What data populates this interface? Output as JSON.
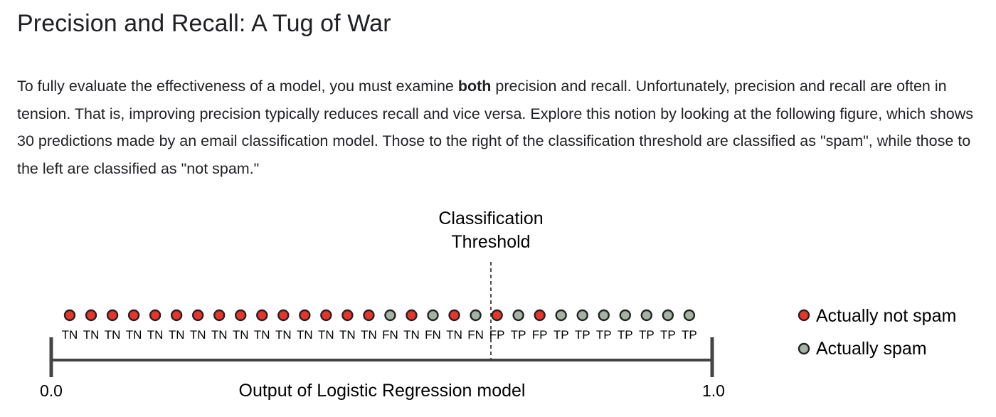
{
  "title": "Precision and Recall: A Tug of War",
  "paragraph": {
    "before_bold": "To fully evaluate the effectiveness of a model, you must examine ",
    "bold": "both",
    "after_bold": " precision and recall. Unfortunately, precision and recall are often in tension. That is, improving precision typically reduces recall and vice versa. Explore this notion by looking at the following figure, which shows 30 predictions made by an email classification model. Those to the right of the classification threshold are classified as \"spam\", while those to the left are classified as \"not spam.\""
  },
  "figure": {
    "threshold_label_line1": "Classification",
    "threshold_label_line2": "Threshold",
    "axis_label": "Output of Logistic Regression model",
    "axis_min_label": "0.0",
    "axis_max_label": "1.0",
    "threshold_position_index": 20,
    "colors": {
      "not_spam": "#e8352a",
      "spam": "#a3b3a3",
      "outline": "#222222",
      "axis": "#444444"
    },
    "legend": [
      {
        "key": "not_spam",
        "label": "Actually not spam"
      },
      {
        "key": "spam",
        "label": "Actually spam"
      }
    ],
    "predictions": [
      {
        "label": "TN",
        "actual": "not_spam"
      },
      {
        "label": "TN",
        "actual": "not_spam"
      },
      {
        "label": "TN",
        "actual": "not_spam"
      },
      {
        "label": "TN",
        "actual": "not_spam"
      },
      {
        "label": "TN",
        "actual": "not_spam"
      },
      {
        "label": "TN",
        "actual": "not_spam"
      },
      {
        "label": "TN",
        "actual": "not_spam"
      },
      {
        "label": "TN",
        "actual": "not_spam"
      },
      {
        "label": "TN",
        "actual": "not_spam"
      },
      {
        "label": "TN",
        "actual": "not_spam"
      },
      {
        "label": "TN",
        "actual": "not_spam"
      },
      {
        "label": "TN",
        "actual": "not_spam"
      },
      {
        "label": "TN",
        "actual": "not_spam"
      },
      {
        "label": "TN",
        "actual": "not_spam"
      },
      {
        "label": "TN",
        "actual": "not_spam"
      },
      {
        "label": "FN",
        "actual": "spam"
      },
      {
        "label": "TN",
        "actual": "not_spam"
      },
      {
        "label": "FN",
        "actual": "spam"
      },
      {
        "label": "TN",
        "actual": "not_spam"
      },
      {
        "label": "FN",
        "actual": "spam"
      },
      {
        "label": "FP",
        "actual": "not_spam"
      },
      {
        "label": "TP",
        "actual": "spam"
      },
      {
        "label": "FP",
        "actual": "not_spam"
      },
      {
        "label": "TP",
        "actual": "spam"
      },
      {
        "label": "TP",
        "actual": "spam"
      },
      {
        "label": "TP",
        "actual": "spam"
      },
      {
        "label": "TP",
        "actual": "spam"
      },
      {
        "label": "TP",
        "actual": "spam"
      },
      {
        "label": "TP",
        "actual": "spam"
      },
      {
        "label": "TP",
        "actual": "spam"
      }
    ]
  }
}
